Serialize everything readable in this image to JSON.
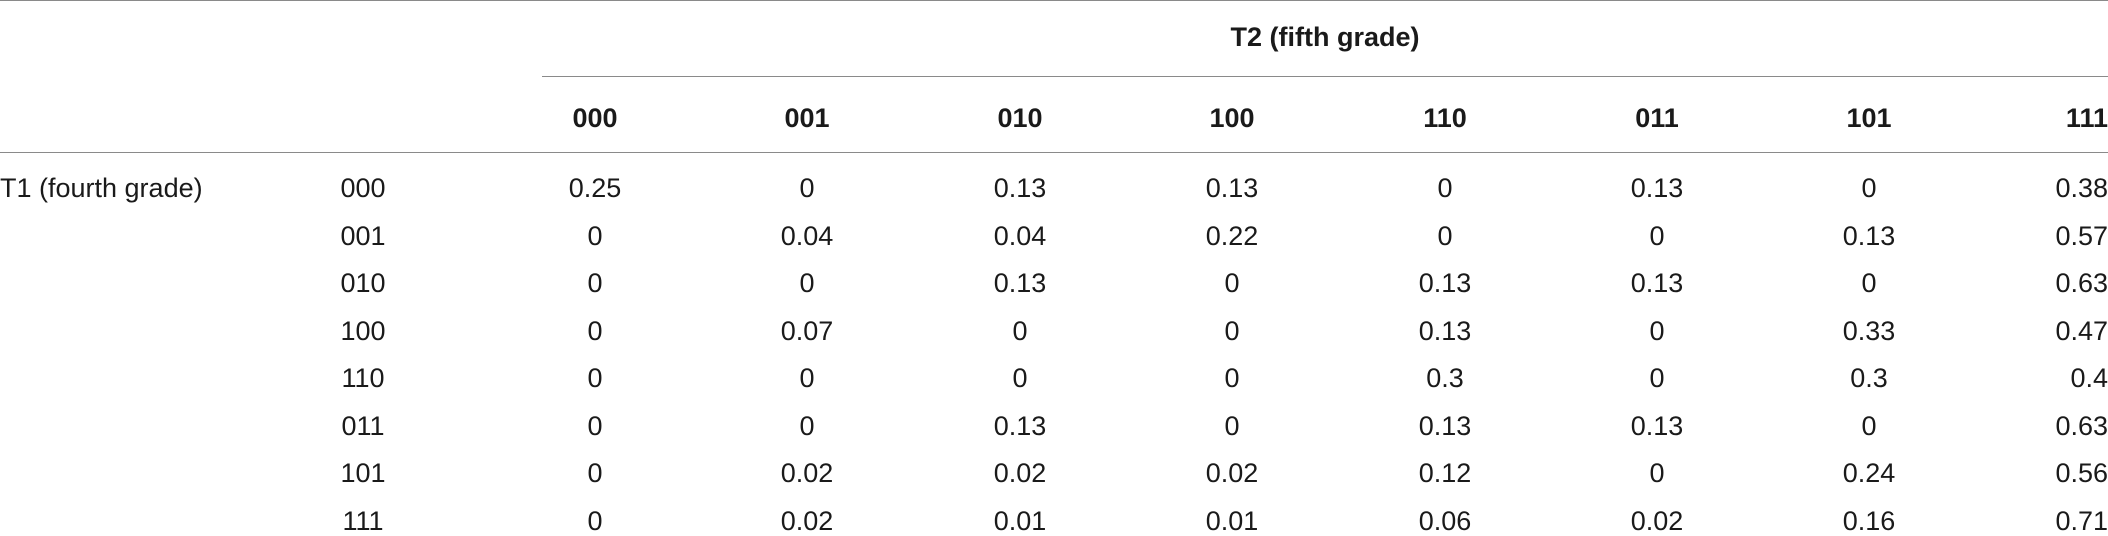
{
  "table": {
    "column_group_title": "T2 (fifth grade)",
    "row_group_label": "T1 (fourth grade)",
    "columns": [
      "000",
      "001",
      "010",
      "100",
      "110",
      "011",
      "101",
      "111"
    ],
    "rows": [
      {
        "label": "000",
        "cells": [
          "0.25",
          "0",
          "0.13",
          "0.13",
          "0",
          "0.13",
          "0",
          "0.38"
        ]
      },
      {
        "label": "001",
        "cells": [
          "0",
          "0.04",
          "0.04",
          "0.22",
          "0",
          "0",
          "0.13",
          "0.57"
        ]
      },
      {
        "label": "010",
        "cells": [
          "0",
          "0",
          "0.13",
          "0",
          "0.13",
          "0.13",
          "0",
          "0.63"
        ]
      },
      {
        "label": "100",
        "cells": [
          "0",
          "0.07",
          "0",
          "0",
          "0.13",
          "0",
          "0.33",
          "0.47"
        ]
      },
      {
        "label": "110",
        "cells": [
          "0",
          "0",
          "0",
          "0",
          "0.3",
          "0",
          "0.3",
          "0.4"
        ]
      },
      {
        "label": "011",
        "cells": [
          "0",
          "0",
          "0.13",
          "0",
          "0.13",
          "0.13",
          "0",
          "0.63"
        ]
      },
      {
        "label": "101",
        "cells": [
          "0",
          "0.02",
          "0.02",
          "0.02",
          "0.12",
          "0",
          "0.24",
          "0.56"
        ]
      },
      {
        "label": "111",
        "cells": [
          "0",
          "0.02",
          "0.01",
          "0.01",
          "0.06",
          "0.02",
          "0.16",
          "0.71"
        ]
      }
    ]
  }
}
